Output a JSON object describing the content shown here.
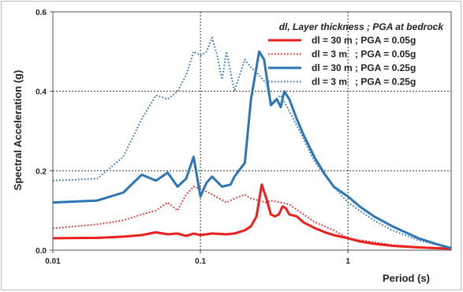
{
  "chart_data": {
    "type": "line",
    "xlabel": "Period (s)",
    "ylabel": "Spectral Acceleration (g)",
    "xscale": "log",
    "xlim": [
      0.01,
      5
    ],
    "ylim": [
      0,
      0.6
    ],
    "xticks": [
      0.01,
      0.1,
      1
    ],
    "xtick_labels": [
      "0.01",
      "0.1",
      "1"
    ],
    "yticks": [
      0.0,
      0.2,
      0.4,
      0.6
    ],
    "ytick_labels": [
      "0.0",
      "0.2",
      "0.4",
      "0.6"
    ],
    "grid": "dashed at major ticks",
    "legend_title": "dl, Layer thickness ; PGA at bedrock",
    "legend_position": "top-right",
    "series": [
      {
        "name": "dl = 30 m ; PGA = 0.05g",
        "color": "#e8201e",
        "dash": "solid",
        "x": [
          0.01,
          0.02,
          0.03,
          0.04,
          0.05,
          0.06,
          0.07,
          0.08,
          0.09,
          0.1,
          0.12,
          0.15,
          0.17,
          0.2,
          0.22,
          0.24,
          0.26,
          0.28,
          0.3,
          0.32,
          0.34,
          0.36,
          0.38,
          0.4,
          0.45,
          0.5,
          0.6,
          0.7,
          0.8,
          1.0,
          1.2,
          1.5,
          2.0,
          3.0,
          4.0,
          5.0
        ],
        "y": [
          0.03,
          0.031,
          0.034,
          0.038,
          0.045,
          0.04,
          0.042,
          0.036,
          0.042,
          0.038,
          0.042,
          0.04,
          0.042,
          0.05,
          0.06,
          0.085,
          0.165,
          0.13,
          0.09,
          0.085,
          0.09,
          0.11,
          0.105,
          0.09,
          0.085,
          0.07,
          0.055,
          0.045,
          0.038,
          0.03,
          0.022,
          0.016,
          0.011,
          0.007,
          0.005,
          0.004
        ]
      },
      {
        "name": "dl = 3 m   ; PGA = 0.05g",
        "color": "#e8201e",
        "dash": "dotted",
        "x": [
          0.01,
          0.02,
          0.03,
          0.04,
          0.05,
          0.06,
          0.07,
          0.08,
          0.09,
          0.1,
          0.12,
          0.15,
          0.17,
          0.2,
          0.22,
          0.25,
          0.28,
          0.3,
          0.35,
          0.4,
          0.5,
          0.6,
          0.8,
          1.0,
          1.5,
          2.0,
          3.0,
          5.0
        ],
        "y": [
          0.055,
          0.065,
          0.075,
          0.09,
          0.1,
          0.12,
          0.1,
          0.14,
          0.16,
          0.155,
          0.14,
          0.12,
          0.13,
          0.14,
          0.13,
          0.125,
          0.12,
          0.125,
          0.12,
          0.115,
          0.09,
          0.07,
          0.05,
          0.03,
          0.02,
          0.013,
          0.008,
          0.004
        ]
      },
      {
        "name": "dl = 30 m ; PGA = 0.25g",
        "color": "#2e75b6",
        "dash": "solid",
        "x": [
          0.01,
          0.02,
          0.03,
          0.04,
          0.05,
          0.06,
          0.07,
          0.08,
          0.09,
          0.1,
          0.11,
          0.12,
          0.14,
          0.16,
          0.17,
          0.2,
          0.22,
          0.25,
          0.27,
          0.3,
          0.33,
          0.35,
          0.37,
          0.4,
          0.45,
          0.5,
          0.6,
          0.7,
          0.8,
          1.0,
          1.2,
          1.5,
          2.0,
          3.0,
          4.0,
          5.0
        ],
        "y": [
          0.12,
          0.125,
          0.145,
          0.19,
          0.175,
          0.195,
          0.16,
          0.18,
          0.235,
          0.135,
          0.17,
          0.185,
          0.16,
          0.165,
          0.185,
          0.22,
          0.38,
          0.5,
          0.48,
          0.365,
          0.38,
          0.36,
          0.4,
          0.38,
          0.33,
          0.29,
          0.23,
          0.19,
          0.16,
          0.135,
          0.11,
          0.085,
          0.06,
          0.03,
          0.015,
          0.005
        ]
      },
      {
        "name": "dl = 3 m   ; PGA = 0.25g",
        "color": "#2e75b6",
        "dash": "dotted",
        "x": [
          0.01,
          0.02,
          0.03,
          0.04,
          0.05,
          0.06,
          0.07,
          0.08,
          0.09,
          0.1,
          0.11,
          0.12,
          0.13,
          0.14,
          0.15,
          0.17,
          0.2,
          0.22,
          0.25,
          0.28,
          0.3,
          0.35,
          0.4,
          0.5,
          0.6,
          0.8,
          1.0,
          1.5,
          2.0,
          3.0,
          5.0
        ],
        "y": [
          0.175,
          0.18,
          0.235,
          0.33,
          0.39,
          0.38,
          0.4,
          0.44,
          0.5,
          0.49,
          0.5,
          0.535,
          0.49,
          0.43,
          0.5,
          0.4,
          0.48,
          0.46,
          0.44,
          0.42,
          0.37,
          0.39,
          0.35,
          0.28,
          0.22,
          0.16,
          0.12,
          0.075,
          0.05,
          0.025,
          0.005
        ]
      }
    ]
  }
}
